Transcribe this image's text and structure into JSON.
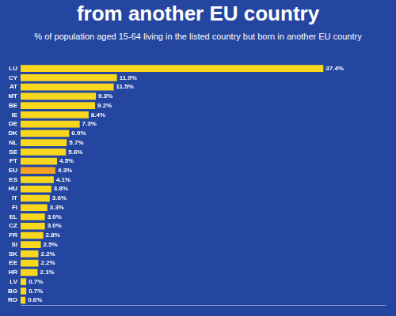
{
  "chart_data": {
    "type": "bar",
    "orientation": "horizontal",
    "title": "from another EU country",
    "subtitle": "% of population aged 15-64 living in the listed country but born in another EU country",
    "categories": [
      "LU",
      "CY",
      "AT",
      "MT",
      "BE",
      "IE",
      "DE",
      "DK",
      "NL",
      "SE",
      "PT",
      "EU",
      "ES",
      "HU",
      "IT",
      "FI",
      "EL",
      "CZ",
      "FR",
      "SI",
      "SK",
      "EE",
      "HR",
      "LV",
      "BG",
      "RO"
    ],
    "values": [
      37.4,
      11.9,
      11.5,
      9.3,
      9.2,
      8.4,
      7.3,
      6.0,
      5.7,
      5.6,
      4.5,
      4.3,
      4.1,
      3.8,
      3.6,
      3.3,
      3.0,
      3.0,
      2.8,
      2.5,
      2.2,
      2.2,
      2.1,
      0.7,
      0.7,
      0.6
    ],
    "value_labels": [
      "37.4%",
      "11.9%",
      "11.5%",
      "9.3%",
      "9.2%",
      "8.4%",
      "7.3%",
      "6.0%",
      "5.7%",
      "5.6%",
      "4.5%",
      "4.3%",
      "4.1%",
      "3.8%",
      "3.6%",
      "3.3%",
      "3.0%",
      "3.0%",
      "2.8%",
      "2.5%",
      "2.2%",
      "2.2%",
      "2.1%",
      "0.7%",
      "0.7%",
      "0.6%"
    ],
    "colors": [
      "#f9d71c",
      "#f9d71c",
      "#f9d71c",
      "#f9d71c",
      "#f9d71c",
      "#f9d71c",
      "#f9d71c",
      "#f9d71c",
      "#f9d71c",
      "#f9d71c",
      "#f9d71c",
      "#f5a020",
      "#f9d71c",
      "#f9d71c",
      "#f9d71c",
      "#f9d71c",
      "#f9d71c",
      "#f9d71c",
      "#f9d71c",
      "#f9d71c",
      "#f9d71c",
      "#f9d71c",
      "#f9d71c",
      "#f9d71c",
      "#f9d71c",
      "#f9d71c"
    ],
    "xlim": [
      0,
      45
    ],
    "data_labels": true,
    "tick_labels": "y",
    "grid": false
  }
}
